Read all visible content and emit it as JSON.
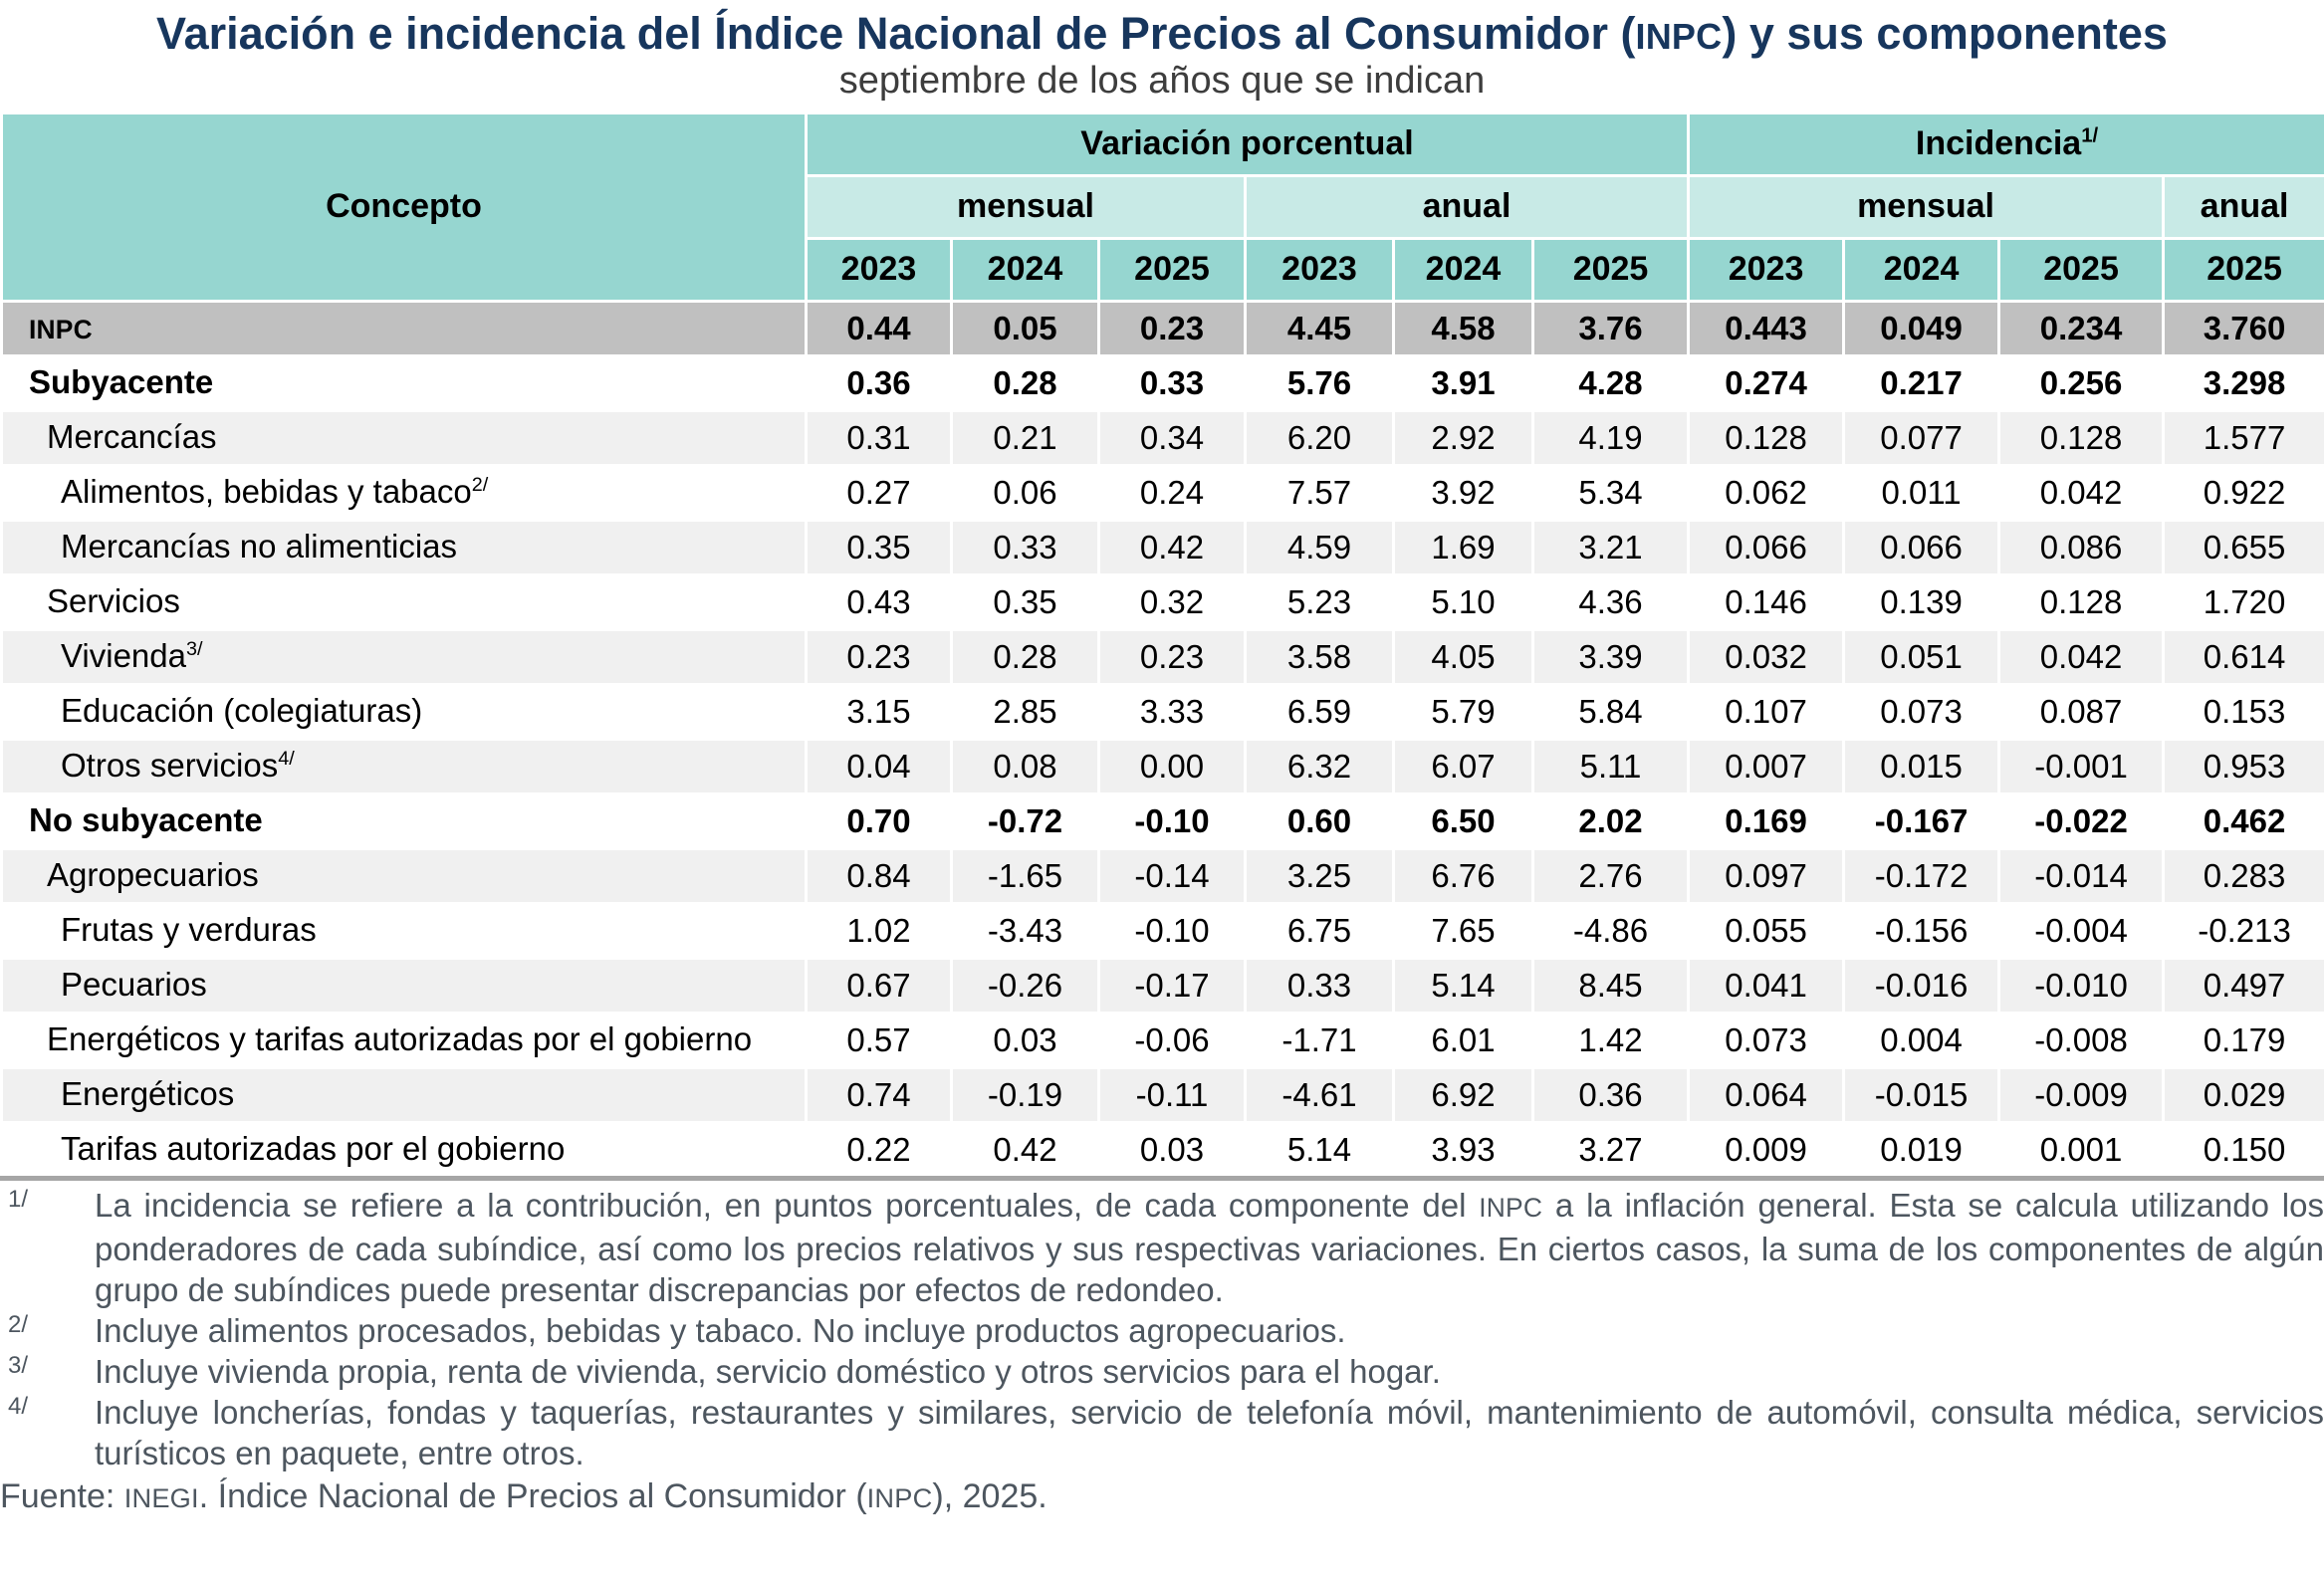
{
  "title": "Variación e incidencia del Índice Nacional de Precios al Consumidor (INPC) y sus componentes",
  "subtitle": "septiembre de los años que se indican",
  "colors": {
    "title_navy": "#17365d",
    "header_teal": "#96d6d0",
    "header_teal_light": "#c8eae6",
    "inpc_row_gray": "#c0c0c0",
    "zebra_gray": "#f0f0f0",
    "table_bottom_border": "#a6a6a6",
    "footnote_gray": "#4d565f"
  },
  "chart_data": {
    "type": "table",
    "title": "Variación e incidencia del Índice Nacional de Precios al Consumidor (INPC) y sus componentes",
    "subtitle": "septiembre de los años que se indican",
    "concepto_header": "Concepto",
    "group_headers": [
      {
        "label": "Variación porcentual",
        "sup": "",
        "colspan": 6
      },
      {
        "label": "Incidencia",
        "sup": "1/",
        "colspan": 4
      }
    ],
    "sub_headers": [
      {
        "label": "mensual",
        "colspan": 3
      },
      {
        "label": "anual",
        "colspan": 3
      },
      {
        "label": "mensual",
        "colspan": 3
      },
      {
        "label": "anual",
        "colspan": 1
      }
    ],
    "years": [
      "2023",
      "2024",
      "2025",
      "2023",
      "2024",
      "2025",
      "2023",
      "2024",
      "2025",
      "2025"
    ],
    "rows": [
      {
        "label": "INPC",
        "sup": "",
        "indent": 1,
        "bold": true,
        "smallcaps": true,
        "inpc": true,
        "shade": false,
        "values": [
          "0.44",
          "0.05",
          "0.23",
          "4.45",
          "4.58",
          "3.76",
          "0.443",
          "0.049",
          "0.234",
          "3.760"
        ]
      },
      {
        "label": "Subyacente",
        "sup": "",
        "indent": 1,
        "bold": true,
        "shade": false,
        "values": [
          "0.36",
          "0.28",
          "0.33",
          "5.76",
          "3.91",
          "4.28",
          "0.274",
          "0.217",
          "0.256",
          "3.298"
        ]
      },
      {
        "label": "Mercancías",
        "sup": "",
        "indent": 2,
        "bold": false,
        "shade": true,
        "values": [
          "0.31",
          "0.21",
          "0.34",
          "6.20",
          "2.92",
          "4.19",
          "0.128",
          "0.077",
          "0.128",
          "1.577"
        ]
      },
      {
        "label": "Alimentos, bebidas y tabaco",
        "sup": "2/",
        "indent": 3,
        "bold": false,
        "shade": false,
        "values": [
          "0.27",
          "0.06",
          "0.24",
          "7.57",
          "3.92",
          "5.34",
          "0.062",
          "0.011",
          "0.042",
          "0.922"
        ]
      },
      {
        "label": "Mercancías no alimenticias",
        "sup": "",
        "indent": 3,
        "bold": false,
        "shade": true,
        "values": [
          "0.35",
          "0.33",
          "0.42",
          "4.59",
          "1.69",
          "3.21",
          "0.066",
          "0.066",
          "0.086",
          "0.655"
        ]
      },
      {
        "label": "Servicios",
        "sup": "",
        "indent": 2,
        "bold": false,
        "shade": false,
        "values": [
          "0.43",
          "0.35",
          "0.32",
          "5.23",
          "5.10",
          "4.36",
          "0.146",
          "0.139",
          "0.128",
          "1.720"
        ]
      },
      {
        "label": "Vivienda",
        "sup": "3/",
        "indent": 3,
        "bold": false,
        "shade": true,
        "values": [
          "0.23",
          "0.28",
          "0.23",
          "3.58",
          "4.05",
          "3.39",
          "0.032",
          "0.051",
          "0.042",
          "0.614"
        ]
      },
      {
        "label": "Educación (colegiaturas)",
        "sup": "",
        "indent": 3,
        "bold": false,
        "shade": false,
        "values": [
          "3.15",
          "2.85",
          "3.33",
          "6.59",
          "5.79",
          "5.84",
          "0.107",
          "0.073",
          "0.087",
          "0.153"
        ]
      },
      {
        "label": "Otros servicios",
        "sup": "4/",
        "indent": 3,
        "bold": false,
        "shade": true,
        "values": [
          "0.04",
          "0.08",
          "0.00",
          "6.32",
          "6.07",
          "5.11",
          "0.007",
          "0.015",
          "-0.001",
          "0.953"
        ]
      },
      {
        "label": "No subyacente",
        "sup": "",
        "indent": 1,
        "bold": true,
        "shade": false,
        "values": [
          "0.70",
          "-0.72",
          "-0.10",
          "0.60",
          "6.50",
          "2.02",
          "0.169",
          "-0.167",
          "-0.022",
          "0.462"
        ]
      },
      {
        "label": "Agropecuarios",
        "sup": "",
        "indent": 2,
        "bold": false,
        "shade": true,
        "values": [
          "0.84",
          "-1.65",
          "-0.14",
          "3.25",
          "6.76",
          "2.76",
          "0.097",
          "-0.172",
          "-0.014",
          "0.283"
        ]
      },
      {
        "label": "Frutas y verduras",
        "sup": "",
        "indent": 3,
        "bold": false,
        "shade": false,
        "values": [
          "1.02",
          "-3.43",
          "-0.10",
          "6.75",
          "7.65",
          "-4.86",
          "0.055",
          "-0.156",
          "-0.004",
          "-0.213"
        ]
      },
      {
        "label": "Pecuarios",
        "sup": "",
        "indent": 3,
        "bold": false,
        "shade": true,
        "values": [
          "0.67",
          "-0.26",
          "-0.17",
          "0.33",
          "5.14",
          "8.45",
          "0.041",
          "-0.016",
          "-0.010",
          "0.497"
        ]
      },
      {
        "label": "Energéticos y tarifas autorizadas por el gobierno",
        "sup": "",
        "indent": 2,
        "bold": false,
        "shade": false,
        "values": [
          "0.57",
          "0.03",
          "-0.06",
          "-1.71",
          "6.01",
          "1.42",
          "0.073",
          "0.004",
          "-0.008",
          "0.179"
        ]
      },
      {
        "label": "Energéticos",
        "sup": "",
        "indent": 3,
        "bold": false,
        "shade": true,
        "values": [
          "0.74",
          "-0.19",
          "-0.11",
          "-4.61",
          "6.92",
          "0.36",
          "0.064",
          "-0.015",
          "-0.009",
          "0.029"
        ]
      },
      {
        "label": "Tarifas autorizadas por el gobierno",
        "sup": "",
        "indent": 3,
        "bold": false,
        "shade": false,
        "values": [
          "0.22",
          "0.42",
          "0.03",
          "5.14",
          "3.93",
          "3.27",
          "0.009",
          "0.019",
          "0.001",
          "0.150"
        ]
      }
    ]
  },
  "footnotes": [
    {
      "marker": "1/",
      "text": "La incidencia se refiere a la contribución, en puntos porcentuales, de cada componente del INPC a la inflación general. Esta se calcula utilizando los ponderadores de cada subíndice, así como los precios relativos y sus respectivas variaciones. En ciertos casos, la suma de los componentes de algún grupo de subíndices puede presentar discrepancias por efectos de redondeo."
    },
    {
      "marker": "2/",
      "text": "Incluye alimentos procesados, bebidas y tabaco. No incluye productos agropecuarios."
    },
    {
      "marker": "3/",
      "text": "Incluye vivienda propia, renta de vivienda, servicio doméstico y otros servicios para el hogar."
    },
    {
      "marker": "4/",
      "text": "Incluye loncherías, fondas y taquerías, restaurantes y similares, servicio de telefonía móvil, mantenimiento de automóvil, consulta médica, servicios turísticos en paquete, entre otros."
    }
  ],
  "source": {
    "label": "Fuente:",
    "text": "INEGI. Índice Nacional de Precios al Consumidor (INPC), 2025."
  }
}
